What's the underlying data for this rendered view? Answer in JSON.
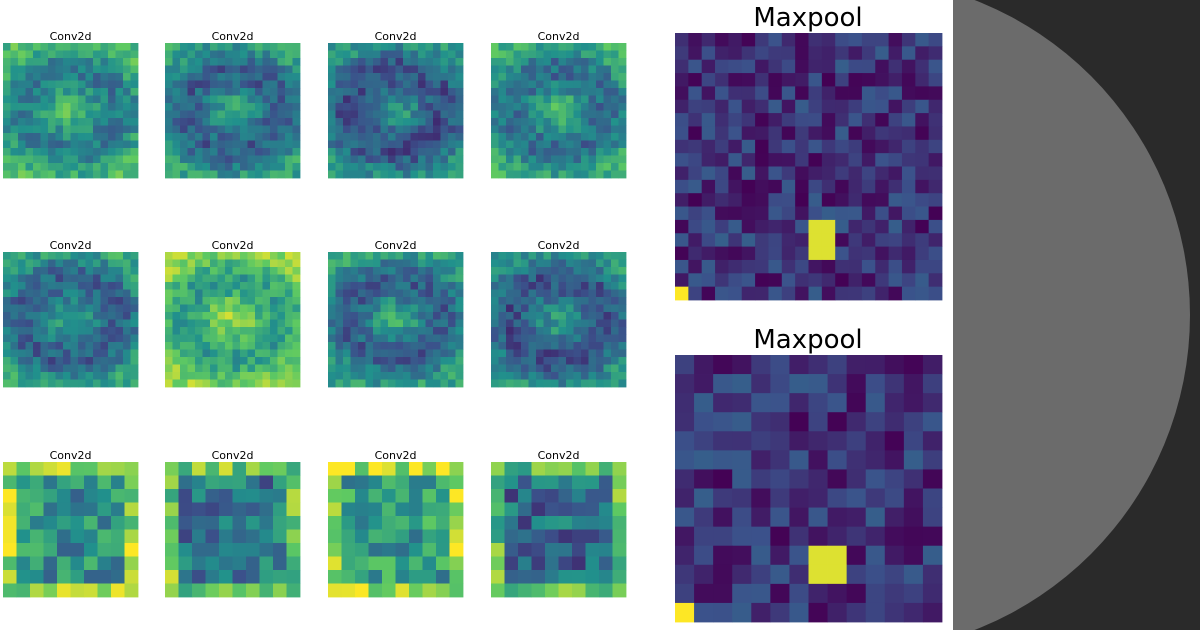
{
  "conv_panels": [
    {
      "title": "Conv2d"
    },
    {
      "title": "Conv2d"
    },
    {
      "title": "Conv2d"
    },
    {
      "title": "Conv2d"
    },
    {
      "title": "Conv2d"
    },
    {
      "title": "Conv2d"
    },
    {
      "title": "Conv2d"
    },
    {
      "title": "Conv2d"
    },
    {
      "title": "Conv2d"
    },
    {
      "title": "Conv2d"
    },
    {
      "title": "Conv2d"
    },
    {
      "title": "Conv2d"
    }
  ],
  "maxpool_panels": [
    {
      "title": "Maxpool"
    },
    {
      "title": "Maxpool"
    }
  ]
}
